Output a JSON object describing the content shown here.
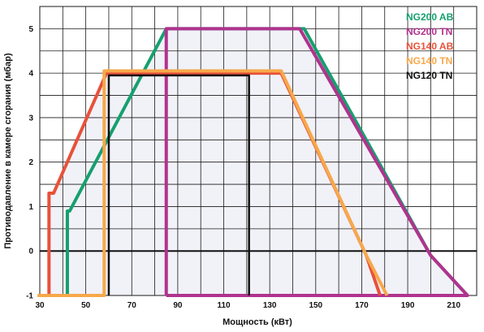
{
  "chart_data": {
    "type": "line",
    "title": "",
    "xlabel": "Мощность  (кВт)",
    "ylabel": "Противодавление в камере сгорания (мбар)",
    "xlim": [
      30,
      220
    ],
    "ylim": [
      -1,
      5.5
    ],
    "x_ticks": [
      30,
      50,
      70,
      90,
      110,
      130,
      150,
      170,
      190,
      210
    ],
    "y_ticks": [
      -1,
      0,
      1,
      2,
      3,
      4,
      5
    ],
    "grid": true,
    "legend_position": "top-right",
    "colors": {
      "background": "#ffffff",
      "plot_area": "#ffffff",
      "grid": "#1a1a1a",
      "zero_line": "#111111",
      "fill": "#f1f1f8"
    },
    "series": [
      {
        "name": "NG200 AB",
        "color": "#16a06e",
        "x": [
          42,
          42,
          43,
          85,
          145,
          200,
          216
        ],
        "y": [
          -1,
          0.9,
          0.9,
          5,
          5,
          -0.1,
          -1
        ]
      },
      {
        "name": "NG200 TN",
        "color": "#b0338e",
        "x": [
          85,
          85,
          143,
          200,
          216,
          85
        ],
        "y": [
          -1,
          5,
          5,
          -0.1,
          -1,
          -1
        ]
      },
      {
        "name": "NG140 AB",
        "color": "#e8513a",
        "x": [
          34,
          34,
          36,
          59,
          135,
          172,
          178
        ],
        "y": [
          -1,
          1.3,
          1.3,
          4,
          4,
          -0.1,
          -1
        ]
      },
      {
        "name": "NG140 TN",
        "color": "#f7a84a",
        "x": [
          29,
          58,
          58,
          135,
          172,
          181
        ],
        "y": [
          -1,
          -1,
          4.05,
          4.05,
          -0.1,
          -1
        ]
      },
      {
        "name": "NG120 TN",
        "color": "#111111",
        "x": [
          60,
          60,
          121,
          121
        ],
        "y": [
          -1,
          3.95,
          3.95,
          -1
        ]
      }
    ]
  }
}
